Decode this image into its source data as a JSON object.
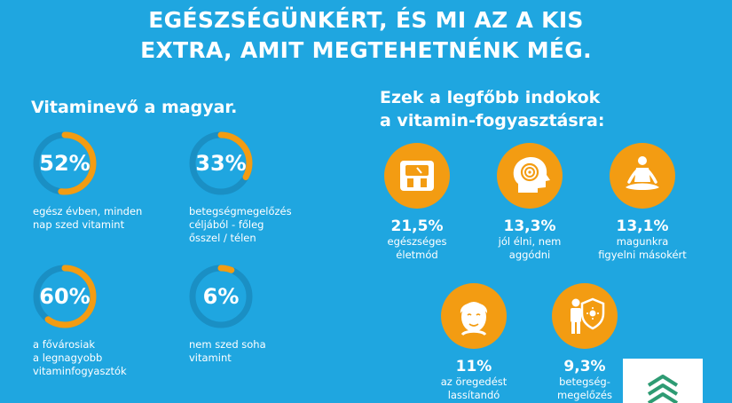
{
  "headline": {
    "line1": "EGÉSZSÉGÜNKÉRT, ÉS MI AZ A KIS",
    "line2": "EXTRA, AMIT MEGTEHETNÉNK MÉG."
  },
  "left": {
    "title": "Vitaminevő a magyar.",
    "stats": [
      {
        "value": "52%",
        "fraction": 0.52,
        "line1": "egész évben, minden",
        "line2": "nap szed vitamint",
        "line3": ""
      },
      {
        "value": "33%",
        "fraction": 0.33,
        "line1": "betegségmegelőzés",
        "line2": "céljából - főleg",
        "line3": "ősszel / télen"
      },
      {
        "value": "60%",
        "fraction": 0.6,
        "line1": "a fővárosiak",
        "line2": "a legnagyobb",
        "line3": "vitaminfogyasztók"
      },
      {
        "value": "6%",
        "fraction": 0.06,
        "line1": "nem szed soha",
        "line2": "vitamint",
        "line3": ""
      }
    ]
  },
  "right": {
    "title_line1": "Ezek a legfőbb indokok",
    "title_line2": "a vitamin-fogyasztásra:",
    "reasons": [
      {
        "value": "21,5%",
        "line1": "egészséges",
        "line2": "életmód",
        "icon": "scale-icon"
      },
      {
        "value": "13,3%",
        "line1": "jól élni, nem",
        "line2": "aggódni",
        "icon": "spiral-head-icon"
      },
      {
        "value": "13,1%",
        "line1": "magunkra",
        "line2": "figyelni másokért",
        "icon": "meditation-icon"
      },
      {
        "value": "11%",
        "line1": "az öregedést",
        "line2": "lassítandó",
        "icon": "face-icon"
      },
      {
        "value": "9,3%",
        "line1": "betegség-",
        "line2": "megelőzés",
        "icon": "shield-person-icon"
      }
    ]
  },
  "colors": {
    "background": "#1fa6e0",
    "accent": "#f39c12",
    "ring_track": "#1a8fc4",
    "logo": "#2e9b73"
  }
}
